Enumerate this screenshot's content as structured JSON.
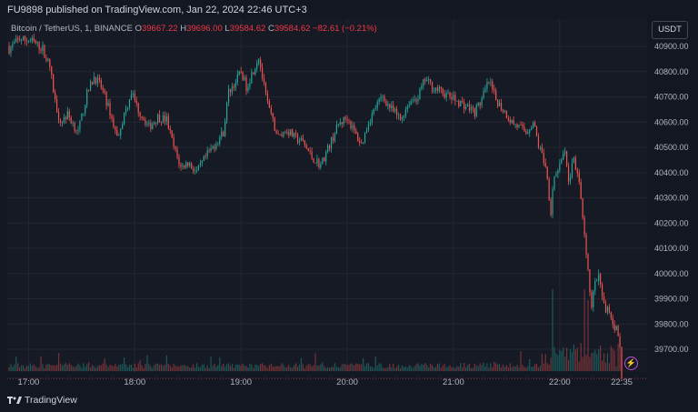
{
  "published": "FU9898 published on TradingView.com, Jan 22, 2024 22:46 UTC+3",
  "legend": {
    "symbol": "Bitcoin / TetherUS, 1, BINANCE",
    "o_label": "O",
    "o": "39667.22",
    "h_label": "H",
    "h": "39696.00",
    "l_label": "L",
    "l": "39584.62",
    "c_label": "C",
    "c": "39584.62",
    "change": "−82.61 (−0.21%)"
  },
  "currency_button": "USDT",
  "footer_brand": "TradingView",
  "colors": {
    "up": "#26a69a",
    "down": "#ef5350",
    "background": "#161a25",
    "grid": "#22262f"
  },
  "chart_data": {
    "type": "candlestick",
    "y_ticks": [
      "40900.00",
      "40800.00",
      "40700.00",
      "40600.00",
      "40500.00",
      "40400.00",
      "40300.00",
      "40200.00",
      "40100.00",
      "40000.00",
      "39900.00",
      "39800.00",
      "39700.00"
    ],
    "x_ticks": [
      "17:00",
      "18:00",
      "19:00",
      "20:00",
      "21:00",
      "22:00",
      "22:35"
    ],
    "ylim": [
      39640,
      40960
    ],
    "close_path": [
      [
        "16:49",
        40890
      ],
      [
        "16:55",
        40930
      ],
      [
        "17:02",
        40920
      ],
      [
        "17:08",
        40890
      ],
      [
        "17:12",
        40820
      ],
      [
        "17:15",
        40680
      ],
      [
        "17:18",
        40600
      ],
      [
        "17:22",
        40630
      ],
      [
        "17:28",
        40560
      ],
      [
        "17:33",
        40710
      ],
      [
        "17:37",
        40780
      ],
      [
        "17:41",
        40740
      ],
      [
        "17:46",
        40640
      ],
      [
        "17:50",
        40540
      ],
      [
        "17:55",
        40650
      ],
      [
        "17:58",
        40720
      ],
      [
        "18:02",
        40650
      ],
      [
        "18:08",
        40580
      ],
      [
        "18:13",
        40620
      ],
      [
        "18:18",
        40610
      ],
      [
        "18:22",
        40500
      ],
      [
        "18:26",
        40420
      ],
      [
        "18:30",
        40440
      ],
      [
        "18:35",
        40400
      ],
      [
        "18:40",
        40460
      ],
      [
        "18:45",
        40510
      ],
      [
        "18:50",
        40560
      ],
      [
        "18:53",
        40720
      ],
      [
        "18:57",
        40760
      ],
      [
        "19:00",
        40800
      ],
      [
        "19:03",
        40740
      ],
      [
        "19:06",
        40790
      ],
      [
        "19:10",
        40860
      ],
      [
        "19:14",
        40700
      ],
      [
        "19:17",
        40620
      ],
      [
        "19:21",
        40540
      ],
      [
        "19:26",
        40570
      ],
      [
        "19:30",
        40540
      ],
      [
        "19:35",
        40520
      ],
      [
        "19:40",
        40460
      ],
      [
        "19:45",
        40430
      ],
      [
        "19:50",
        40510
      ],
      [
        "19:55",
        40590
      ],
      [
        "20:00",
        40620
      ],
      [
        "20:04",
        40560
      ],
      [
        "20:08",
        40510
      ],
      [
        "20:12",
        40600
      ],
      [
        "20:16",
        40660
      ],
      [
        "20:20",
        40700
      ],
      [
        "20:25",
        40650
      ],
      [
        "20:30",
        40610
      ],
      [
        "20:35",
        40680
      ],
      [
        "20:40",
        40700
      ],
      [
        "20:44",
        40770
      ],
      [
        "20:48",
        40740
      ],
      [
        "20:53",
        40720
      ],
      [
        "20:58",
        40700
      ],
      [
        "21:03",
        40680
      ],
      [
        "21:08",
        40660
      ],
      [
        "21:12",
        40640
      ],
      [
        "21:16",
        40690
      ],
      [
        "21:20",
        40760
      ],
      [
        "21:24",
        40690
      ],
      [
        "21:28",
        40650
      ],
      [
        "21:33",
        40600
      ],
      [
        "21:37",
        40580
      ],
      [
        "21:41",
        40560
      ],
      [
        "21:45",
        40600
      ],
      [
        "21:48",
        40510
      ],
      [
        "21:52",
        40430
      ],
      [
        "21:55",
        40250
      ],
      [
        "21:57",
        40390
      ],
      [
        "22:00",
        40420
      ],
      [
        "22:03",
        40480
      ],
      [
        "22:05",
        40360
      ],
      [
        "22:08",
        40460
      ],
      [
        "22:11",
        40350
      ],
      [
        "22:14",
        40140
      ],
      [
        "22:16",
        40000
      ],
      [
        "22:18",
        39880
      ],
      [
        "22:20",
        39960
      ],
      [
        "22:22",
        39990
      ],
      [
        "22:24",
        39900
      ],
      [
        "22:26",
        39840
      ],
      [
        "22:28",
        39860
      ],
      [
        "22:30",
        39800
      ],
      [
        "22:32",
        39780
      ],
      [
        "22:34",
        39700
      ],
      [
        "22:35",
        39585
      ]
    ],
    "last_close": 39584.62
  }
}
